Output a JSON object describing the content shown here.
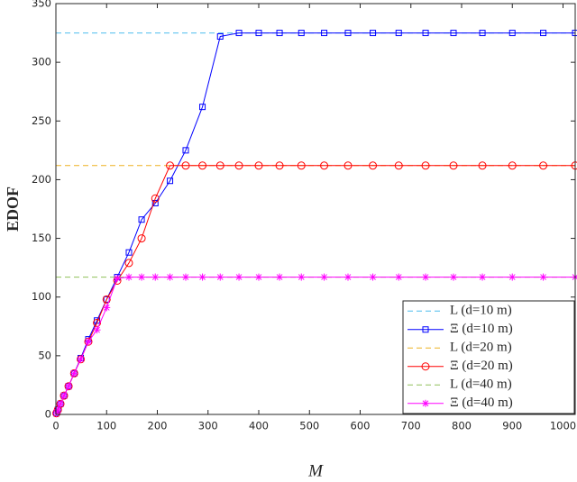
{
  "chart_data": {
    "type": "line",
    "x_label": "M",
    "y_label": "EDOF",
    "xlim": [
      0,
      1024
    ],
    "ylim": [
      0,
      350
    ],
    "xticks": [
      0,
      100,
      200,
      300,
      400,
      500,
      600,
      700,
      800,
      900,
      1000
    ],
    "yticks": [
      0,
      50,
      100,
      150,
      200,
      250,
      300,
      350
    ],
    "legend": "lower-right",
    "series": [
      {
        "name": "L (d=10 m)",
        "color": "#4DBEEE",
        "style": "dashed",
        "x": [
          0,
          1024
        ],
        "values": [
          325,
          325
        ]
      },
      {
        "name": "Ξ (d=10 m)",
        "color": "#0000FF",
        "marker": "square",
        "x": [
          1,
          4,
          9,
          16,
          25,
          36,
          49,
          64,
          81,
          100,
          121,
          144,
          169,
          196,
          225,
          256,
          289,
          324,
          361,
          400,
          441,
          484,
          529,
          576,
          625,
          676,
          729,
          784,
          841,
          900,
          961,
          1024
        ],
        "values": [
          1,
          4,
          9,
          16,
          24,
          35,
          48,
          64,
          80,
          98,
          117,
          138,
          166,
          180,
          199,
          225,
          262,
          322,
          325,
          325,
          325,
          325,
          325,
          325,
          325,
          325,
          325,
          325,
          325,
          325,
          325,
          325
        ]
      },
      {
        "name": "L (d=20 m)",
        "color": "#EDB120",
        "style": "dashed",
        "x": [
          0,
          1024
        ],
        "values": [
          212,
          212
        ]
      },
      {
        "name": "Ξ (d=20 m)",
        "color": "#FF0000",
        "marker": "circle",
        "x": [
          1,
          4,
          9,
          16,
          25,
          36,
          49,
          64,
          81,
          100,
          121,
          144,
          169,
          196,
          225,
          256,
          289,
          324,
          361,
          400,
          441,
          484,
          529,
          576,
          625,
          676,
          729,
          784,
          841,
          900,
          961,
          1024
        ],
        "values": [
          1,
          4,
          9,
          16,
          24,
          35,
          47,
          62,
          78,
          98,
          114,
          129,
          150,
          184,
          212,
          212,
          212,
          212,
          212,
          212,
          212,
          212,
          212,
          212,
          212,
          212,
          212,
          212,
          212,
          212,
          212,
          212
        ]
      },
      {
        "name": "L (d=40 m)",
        "color": "#8FC05A",
        "style": "dashed",
        "x": [
          0,
          1024
        ],
        "values": [
          117,
          117
        ]
      },
      {
        "name": "Ξ (d=40 m)",
        "color": "#FF00FF",
        "marker": "star",
        "x": [
          1,
          4,
          9,
          16,
          25,
          36,
          49,
          64,
          81,
          100,
          121,
          144,
          169,
          196,
          225,
          256,
          289,
          324,
          361,
          400,
          441,
          484,
          529,
          576,
          625,
          676,
          729,
          784,
          841,
          900,
          961,
          1024
        ],
        "values": [
          1,
          4,
          9,
          16,
          24,
          35,
          47,
          62,
          72,
          91,
          116,
          117,
          117,
          117,
          117,
          117,
          117,
          117,
          117,
          117,
          117,
          117,
          117,
          117,
          117,
          117,
          117,
          117,
          117,
          117,
          117,
          117
        ]
      }
    ]
  }
}
